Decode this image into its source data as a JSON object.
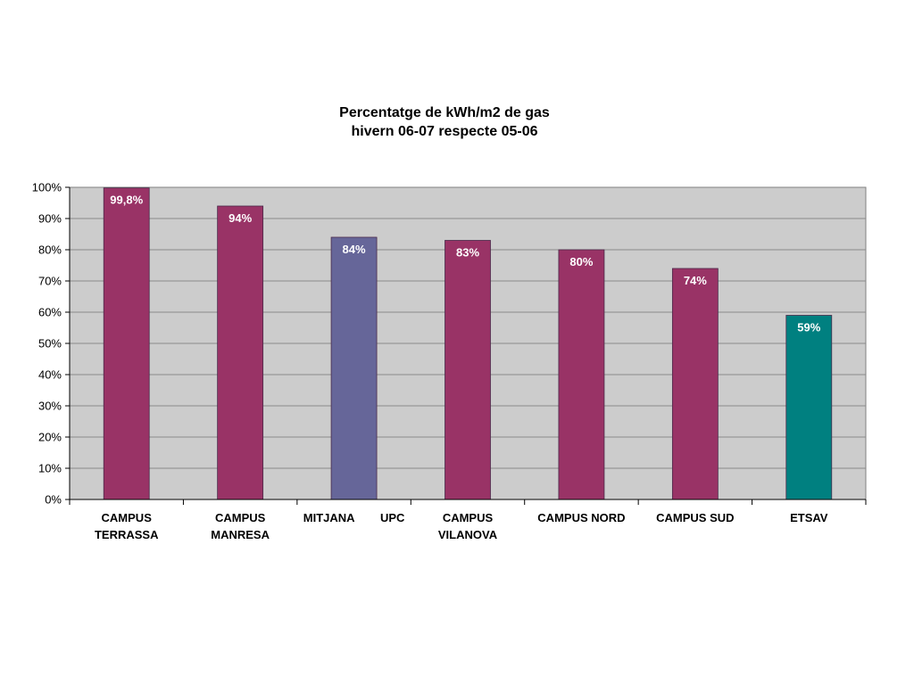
{
  "chart_data": {
    "type": "bar",
    "title": [
      "Percentatge de kWh/m2 de gas",
      "hivern 06-07 respecte 05-06"
    ],
    "xlabel": "",
    "ylabel": "",
    "ylim": [
      0,
      100
    ],
    "yticks": [
      "0%",
      "10%",
      "20%",
      "30%",
      "40%",
      "50%",
      "60%",
      "70%",
      "80%",
      "90%",
      "100%"
    ],
    "grid": true,
    "legend": "none",
    "plot_background": "#cccccc",
    "categories": [
      [
        "CAMPUS",
        "TERRASSA"
      ],
      [
        "CAMPUS",
        "MANRESA"
      ],
      [
        "MITJANA        UPC"
      ],
      [
        "CAMPUS",
        "VILANOVA"
      ],
      [
        "CAMPUS NORD"
      ],
      [
        "CAMPUS SUD"
      ],
      [
        "ETSAV"
      ]
    ],
    "values": [
      99.8,
      94,
      84,
      83,
      80,
      74,
      59
    ],
    "data_labels": [
      "99,8%",
      "94%",
      "84%",
      "83%",
      "80%",
      "74%",
      "59%"
    ],
    "colors": [
      "#993366",
      "#993366",
      "#666699",
      "#993366",
      "#993366",
      "#993366",
      "#008080"
    ]
  }
}
